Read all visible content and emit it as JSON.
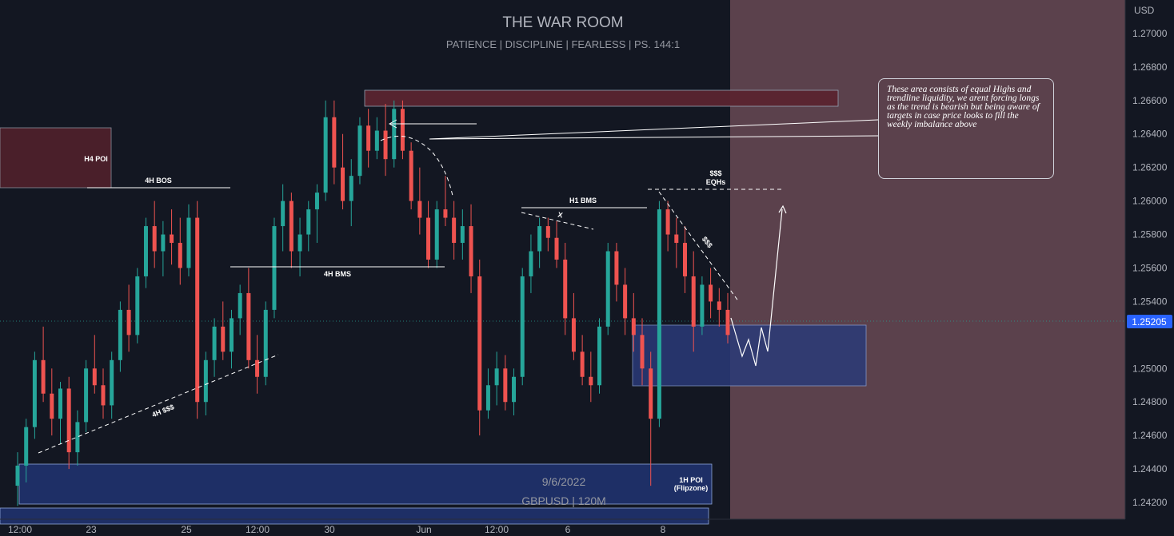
{
  "header": {
    "title": "THE WAR ROOM",
    "subtitle": "PATIENCE   |   DISCIPLINE   |   FEARLESS   | PS. 144:1"
  },
  "watermark": {
    "date": "9/6/2022",
    "symbol": "GBPUSD | 120M"
  },
  "note": {
    "text": "These area consists of equal Highs and trendline liquidity, we arent forcing longs as the trend is bearish but being aware of targets in case price looks to fill the weekly imbalance above"
  },
  "colors": {
    "background": "#131722",
    "bull": "#26a69a",
    "bear": "#ef5350",
    "price_badge": "#2962ff",
    "forecast_zone": "#5b414c",
    "poi_blue": "#1e2f66",
    "poi_red": "#4a1f2a"
  },
  "chart_data": {
    "type": "candlestick",
    "symbol": "GBPUSD",
    "timeframe": "120M",
    "currency_label": "USD",
    "last_price": "1.25205",
    "ylim": [
      1.241,
      1.272
    ],
    "y_ticks": [
      "1.27000",
      "1.26800",
      "1.26600",
      "1.26400",
      "1.26200",
      "1.26000",
      "1.25800",
      "1.25600",
      "1.25400",
      "1.25000",
      "1.24800",
      "1.24600",
      "1.24400",
      "1.24200"
    ],
    "x_ticks": [
      "12:00",
      "23",
      "25",
      "12:00",
      "30",
      "Jun",
      "12:00",
      "6",
      "8"
    ],
    "candles": [
      [
        1.243,
        1.245,
        1.2418,
        1.2442
      ],
      [
        1.2442,
        1.247,
        1.2432,
        1.2465
      ],
      [
        1.2465,
        1.251,
        1.2458,
        1.2505
      ],
      [
        1.2505,
        1.2525,
        1.248,
        1.2485
      ],
      [
        1.2485,
        1.25,
        1.246,
        1.247
      ],
      [
        1.247,
        1.2492,
        1.2455,
        1.2488
      ],
      [
        1.2488,
        1.2495,
        1.244,
        1.245
      ],
      [
        1.245,
        1.2475,
        1.2442,
        1.2468
      ],
      [
        1.2468,
        1.2505,
        1.2462,
        1.25
      ],
      [
        1.25,
        1.252,
        1.2485,
        1.249
      ],
      [
        1.249,
        1.25,
        1.247,
        1.2478
      ],
      [
        1.2478,
        1.251,
        1.247,
        1.2505
      ],
      [
        1.2505,
        1.254,
        1.2498,
        1.2535
      ],
      [
        1.2535,
        1.255,
        1.251,
        1.252
      ],
      [
        1.252,
        1.256,
        1.2515,
        1.2555
      ],
      [
        1.2555,
        1.259,
        1.2548,
        1.2585
      ],
      [
        1.2585,
        1.26,
        1.256,
        1.257
      ],
      [
        1.257,
        1.2588,
        1.2555,
        1.258
      ],
      [
        1.258,
        1.2595,
        1.2562,
        1.2575
      ],
      [
        1.2575,
        1.259,
        1.255,
        1.256
      ],
      [
        1.256,
        1.2598,
        1.2555,
        1.259
      ],
      [
        1.259,
        1.26,
        1.247,
        1.248
      ],
      [
        1.248,
        1.251,
        1.2472,
        1.2505
      ],
      [
        1.2505,
        1.253,
        1.2495,
        1.2525
      ],
      [
        1.2525,
        1.254,
        1.2505,
        1.251
      ],
      [
        1.251,
        1.2535,
        1.25,
        1.253
      ],
      [
        1.253,
        1.255,
        1.252,
        1.2545
      ],
      [
        1.2545,
        1.256,
        1.25,
        1.2505
      ],
      [
        1.2505,
        1.252,
        1.2485,
        1.2495
      ],
      [
        1.2495,
        1.254,
        1.249,
        1.2535
      ],
      [
        1.2535,
        1.259,
        1.253,
        1.2585
      ],
      [
        1.2585,
        1.261,
        1.257,
        1.26
      ],
      [
        1.26,
        1.2605,
        1.256,
        1.257
      ],
      [
        1.257,
        1.259,
        1.2555,
        1.258
      ],
      [
        1.258,
        1.26,
        1.257,
        1.2595
      ],
      [
        1.2595,
        1.261,
        1.2575,
        1.2605
      ],
      [
        1.2605,
        1.266,
        1.26,
        1.265
      ],
      [
        1.265,
        1.266,
        1.261,
        1.262
      ],
      [
        1.262,
        1.264,
        1.2595,
        1.26
      ],
      [
        1.26,
        1.2625,
        1.2585,
        1.2615
      ],
      [
        1.2615,
        1.265,
        1.261,
        1.2645
      ],
      [
        1.2645,
        1.2655,
        1.262,
        1.263
      ],
      [
        1.263,
        1.265,
        1.2625,
        1.2642
      ],
      [
        1.2642,
        1.2658,
        1.2615,
        1.2625
      ],
      [
        1.2625,
        1.266,
        1.262,
        1.2655
      ],
      [
        1.2655,
        1.266,
        1.2625,
        1.263
      ],
      [
        1.263,
        1.2635,
        1.2595,
        1.26
      ],
      [
        1.26,
        1.262,
        1.258,
        1.259
      ],
      [
        1.259,
        1.26,
        1.256,
        1.2565
      ],
      [
        1.2565,
        1.26,
        1.256,
        1.2595
      ],
      [
        1.2595,
        1.2615,
        1.2585,
        1.259
      ],
      [
        1.259,
        1.26,
        1.2565,
        1.2575
      ],
      [
        1.2575,
        1.2595,
        1.2565,
        1.2585
      ],
      [
        1.2585,
        1.2598,
        1.2545,
        1.2555
      ],
      [
        1.2555,
        1.2565,
        1.246,
        1.2475
      ],
      [
        1.2475,
        1.25,
        1.247,
        1.249
      ],
      [
        1.249,
        1.251,
        1.2478,
        1.25
      ],
      [
        1.25,
        1.2508,
        1.2475,
        1.248
      ],
      [
        1.248,
        1.25,
        1.2472,
        1.2495
      ],
      [
        1.2495,
        1.256,
        1.249,
        1.2555
      ],
      [
        1.2555,
        1.258,
        1.2545,
        1.257
      ],
      [
        1.257,
        1.259,
        1.256,
        1.2585
      ],
      [
        1.2585,
        1.259,
        1.257,
        1.2578
      ],
      [
        1.2578,
        1.2588,
        1.256,
        1.2565
      ],
      [
        1.2565,
        1.2575,
        1.252,
        1.253
      ],
      [
        1.253,
        1.2545,
        1.2505,
        1.251
      ],
      [
        1.251,
        1.252,
        1.249,
        1.2495
      ],
      [
        1.2495,
        1.251,
        1.248,
        1.249
      ],
      [
        1.249,
        1.253,
        1.2485,
        1.2525
      ],
      [
        1.2525,
        1.2575,
        1.252,
        1.257
      ],
      [
        1.257,
        1.2575,
        1.254,
        1.255
      ],
      [
        1.255,
        1.256,
        1.252,
        1.253
      ],
      [
        1.253,
        1.2545,
        1.251,
        1.252
      ],
      [
        1.252,
        1.253,
        1.249,
        1.25
      ],
      [
        1.25,
        1.251,
        1.243,
        1.247
      ],
      [
        1.247,
        1.26,
        1.2465,
        1.2595
      ],
      [
        1.2595,
        1.26,
        1.257,
        1.258
      ],
      [
        1.258,
        1.259,
        1.256,
        1.2575
      ],
      [
        1.2575,
        1.2585,
        1.2545,
        1.2555
      ],
      [
        1.2555,
        1.257,
        1.251,
        1.2525
      ],
      [
        1.2525,
        1.2555,
        1.252,
        1.255
      ],
      [
        1.255,
        1.256,
        1.253,
        1.254
      ],
      [
        1.254,
        1.2548,
        1.2525,
        1.2535
      ],
      [
        1.2535,
        1.2545,
        1.2515,
        1.252
      ]
    ],
    "zones": [
      {
        "label": "H4 POI",
        "y": [
          1.2616,
          1.26
        ]
      },
      {
        "label": "1H POI (Flipzone)",
        "y": [
          1.2437,
          1.241
        ]
      },
      {
        "label": "",
        "y": [
          1.252,
          1.2482
        ]
      },
      {
        "label": "",
        "y": [
          1.2661,
          1.2654
        ]
      }
    ],
    "annotations": [
      {
        "text": "4H BOS",
        "level": 1.26
      },
      {
        "text": "4H BMS",
        "level": 1.2553
      },
      {
        "text": "H1 BMS",
        "level": 1.259
      },
      {
        "text": "X",
        "level": 1.2585
      },
      {
        "text": "4H $$$",
        "level": 1.2478
      },
      {
        "text": "$$$",
        "level": 1.26
      },
      {
        "text": "EQHs",
        "level": 1.26
      },
      {
        "text": "$$$",
        "level": 1.2573
      },
      {
        "text": "1H POI",
        "level": 1.2437
      },
      {
        "text": "(Flipzone)",
        "level": 1.2437
      }
    ]
  }
}
